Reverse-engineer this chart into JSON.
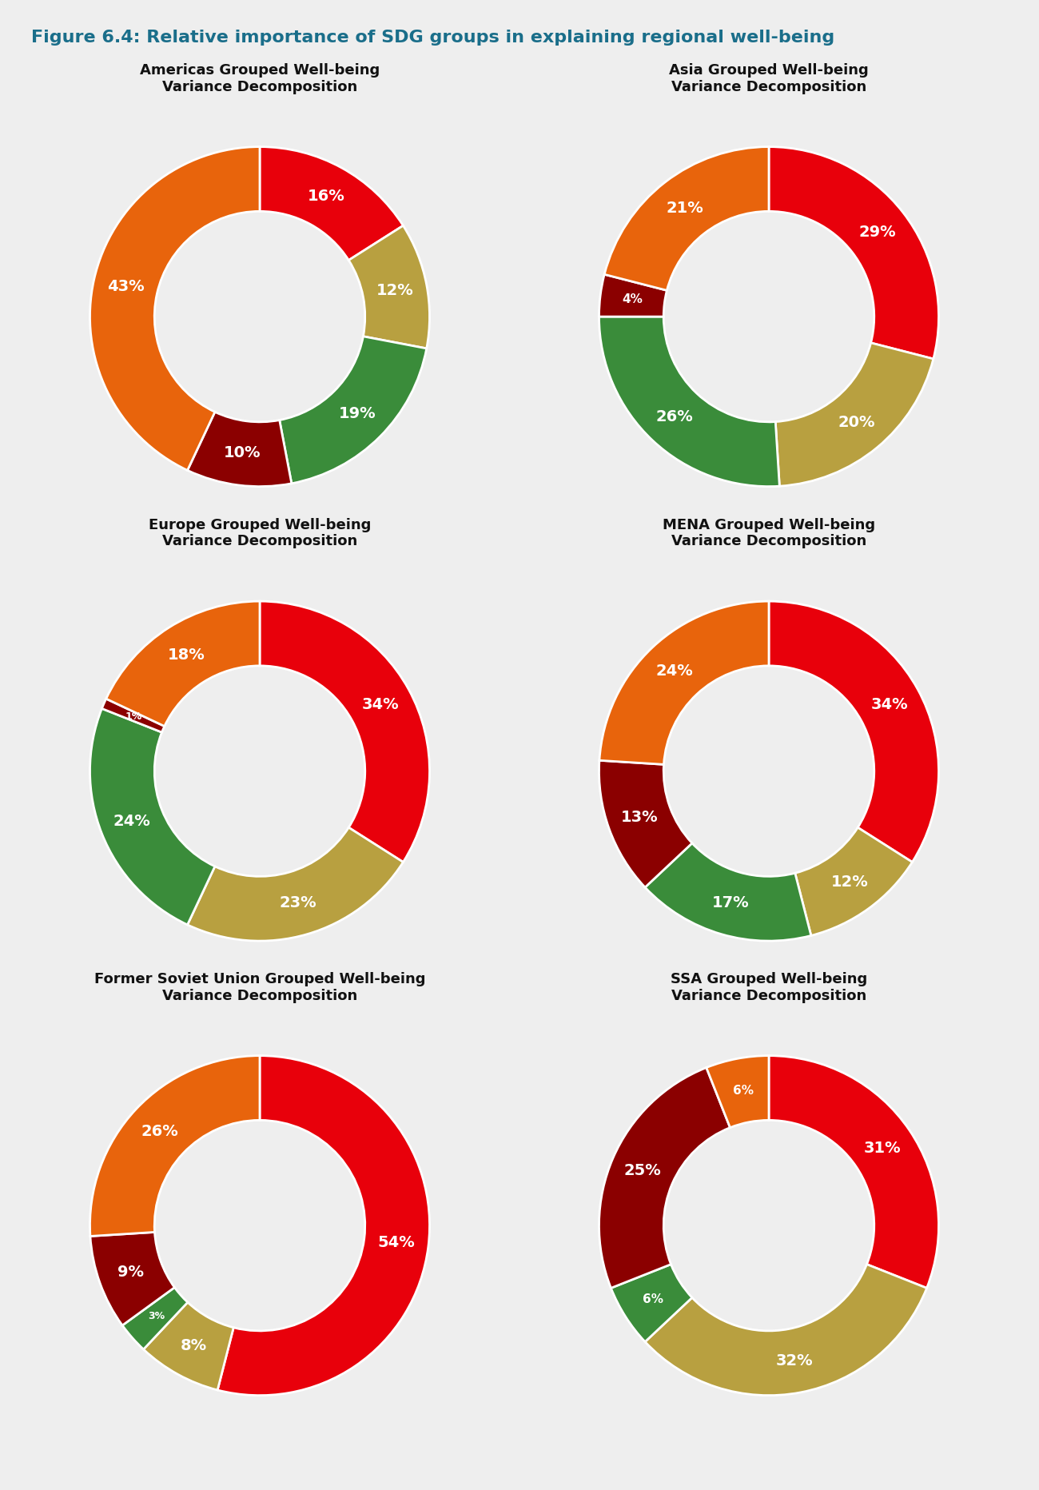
{
  "figure_title": "Figure 6.4: Relative importance of SDG groups in explaining regional well-being",
  "background_color": "#eeeeee",
  "title_color": "#1a6e8a",
  "title_fontsize": 16,
  "subtitle_line_color": "#1a6e8a",
  "charts": [
    {
      "title": "Americas Grouped Well-being\nVariance Decomposition",
      "values": [
        16,
        12,
        19,
        10,
        43
      ],
      "colors": [
        "#e8000b",
        "#b8a040",
        "#3a8c3a",
        "#8b0000",
        "#e8640c"
      ],
      "labels": [
        "16%",
        "12%",
        "19%",
        "10%",
        "43%"
      ]
    },
    {
      "title": "Asia Grouped Well-being\nVariance Decomposition",
      "values": [
        29,
        20,
        26,
        4,
        21
      ],
      "colors": [
        "#e8000b",
        "#b8a040",
        "#3a8c3a",
        "#8b0000",
        "#e8640c"
      ],
      "labels": [
        "29%",
        "20%",
        "26%",
        "4%",
        "21%"
      ]
    },
    {
      "title": "Europe Grouped Well-being\nVariance Decomposition",
      "values": [
        34,
        23,
        24,
        1,
        18
      ],
      "colors": [
        "#e8000b",
        "#b8a040",
        "#3a8c3a",
        "#8b0000",
        "#e8640c"
      ],
      "labels": [
        "34%",
        "23%",
        "24%",
        "1%",
        "18%"
      ]
    },
    {
      "title": "MENA Grouped Well-being\nVariance Decomposition",
      "values": [
        34,
        12,
        17,
        13,
        24
      ],
      "colors": [
        "#e8000b",
        "#b8a040",
        "#3a8c3a",
        "#8b0000",
        "#e8640c"
      ],
      "labels": [
        "34%",
        "12%",
        "17%",
        "13%",
        "24%"
      ]
    },
    {
      "title": "Former Soviet Union Grouped Well-being\nVariance Decomposition",
      "values": [
        54,
        8,
        3,
        9,
        26
      ],
      "colors": [
        "#e8000b",
        "#b8a040",
        "#3a8c3a",
        "#8b0000",
        "#e8640c"
      ],
      "labels": [
        "54%",
        "8%",
        "3%",
        "9%",
        "26%"
      ]
    },
    {
      "title": "SSA Grouped Well-being\nVariance Decomposition",
      "values": [
        31,
        32,
        6,
        25,
        6
      ],
      "colors": [
        "#e8000b",
        "#b8a040",
        "#3a8c3a",
        "#8b0000",
        "#e8640c"
      ],
      "labels": [
        "31%",
        "32%",
        "6%",
        "25%",
        "6%"
      ]
    }
  ],
  "donut_width": 0.38,
  "label_fontsize": 14,
  "chart_title_fontsize": 13
}
